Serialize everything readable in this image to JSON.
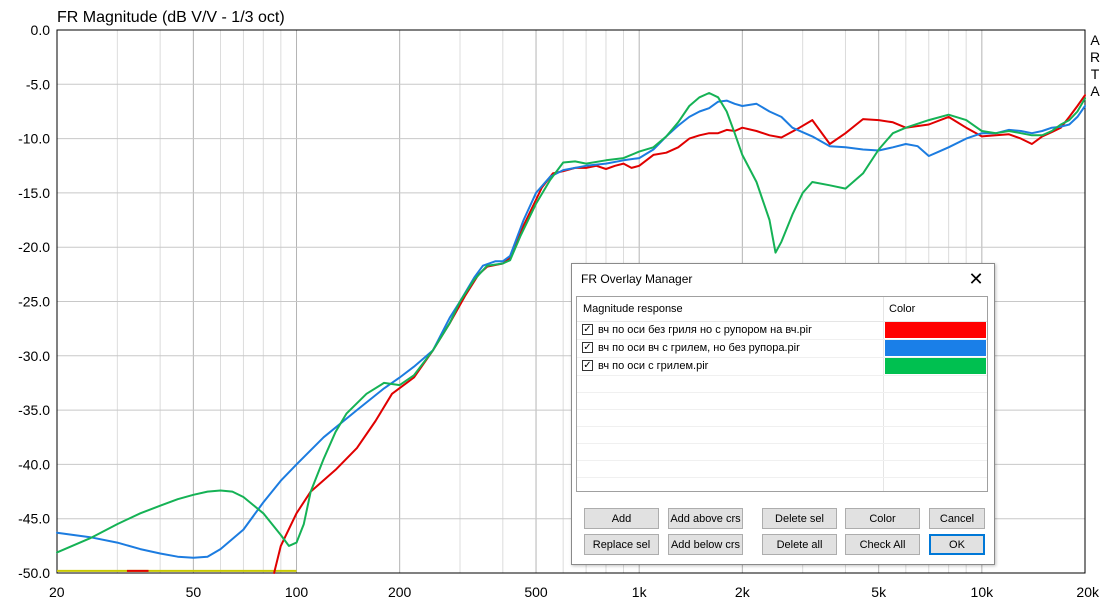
{
  "chart_data": {
    "type": "line",
    "title": "FR Magnitude (dB V/V - 1/3 oct)",
    "brand": [
      "A",
      "R",
      "T",
      "A"
    ],
    "x_scale": "log",
    "xlim": [
      20,
      20000
    ],
    "ylim": [
      -50,
      0
    ],
    "grid": true,
    "x_ticks": [
      {
        "value": 20,
        "label": "20"
      },
      {
        "value": 50,
        "label": "50"
      },
      {
        "value": 100,
        "label": "100"
      },
      {
        "value": 200,
        "label": "200"
      },
      {
        "value": 500,
        "label": "500"
      },
      {
        "value": 1000,
        "label": "1k"
      },
      {
        "value": 2000,
        "label": "2k"
      },
      {
        "value": 5000,
        "label": "5k"
      },
      {
        "value": 10000,
        "label": "10k"
      },
      {
        "value": 20000,
        "label": "20k"
      }
    ],
    "y_ticks": [
      {
        "value": 0,
        "label": "0.0"
      },
      {
        "value": -5,
        "label": "-5.0"
      },
      {
        "value": -10,
        "label": "-10.0"
      },
      {
        "value": -15,
        "label": "-15.0"
      },
      {
        "value": -20,
        "label": "-20.0"
      },
      {
        "value": -25,
        "label": "-25.0"
      },
      {
        "value": -30,
        "label": "-30.0"
      },
      {
        "value": -35,
        "label": "-35.0"
      },
      {
        "value": -40,
        "label": "-40.0"
      },
      {
        "value": -45,
        "label": "-45.0"
      },
      {
        "value": -50,
        "label": "-50.0"
      }
    ],
    "series": [
      {
        "name": "вч по оси без гриля но с рупором на вч.pir",
        "color": "#e00000",
        "points": [
          [
            86,
            -50
          ],
          [
            90,
            -47.5
          ],
          [
            100,
            -44.5
          ],
          [
            110,
            -42.5
          ],
          [
            130,
            -40.5
          ],
          [
            150,
            -38.5
          ],
          [
            170,
            -36
          ],
          [
            190,
            -33.5
          ],
          [
            220,
            -32
          ],
          [
            250,
            -29.5
          ],
          [
            280,
            -27
          ],
          [
            310,
            -24.5
          ],
          [
            340,
            -22.5
          ],
          [
            360,
            -21.8
          ],
          [
            400,
            -21.5
          ],
          [
            420,
            -21
          ],
          [
            460,
            -18
          ],
          [
            520,
            -14.5
          ],
          [
            560,
            -13.2
          ],
          [
            600,
            -13
          ],
          [
            650,
            -12.7
          ],
          [
            700,
            -12.7
          ],
          [
            750,
            -12.5
          ],
          [
            800,
            -12.8
          ],
          [
            850,
            -12.5
          ],
          [
            900,
            -12.3
          ],
          [
            950,
            -12.7
          ],
          [
            1000,
            -12.5
          ],
          [
            1100,
            -11.5
          ],
          [
            1200,
            -11.3
          ],
          [
            1300,
            -10.8
          ],
          [
            1400,
            -10
          ],
          [
            1500,
            -9.7
          ],
          [
            1600,
            -9.5
          ],
          [
            1700,
            -9.5
          ],
          [
            1800,
            -9.2
          ],
          [
            1900,
            -9.3
          ],
          [
            2000,
            -9
          ],
          [
            2200,
            -9.3
          ],
          [
            2400,
            -9.7
          ],
          [
            2600,
            -9.9
          ],
          [
            2900,
            -9.1
          ],
          [
            3200,
            -8.3
          ],
          [
            3600,
            -10.5
          ],
          [
            4000,
            -9.5
          ],
          [
            4500,
            -8.2
          ],
          [
            5000,
            -8.3
          ],
          [
            5500,
            -8.5
          ],
          [
            6000,
            -9
          ],
          [
            7000,
            -8.7
          ],
          [
            8000,
            -8
          ],
          [
            9000,
            -9
          ],
          [
            10000,
            -9.8
          ],
          [
            11000,
            -9.7
          ],
          [
            12000,
            -9.6
          ],
          [
            13000,
            -10
          ],
          [
            14000,
            -10.5
          ],
          [
            15000,
            -9.8
          ],
          [
            16000,
            -9.4
          ],
          [
            17000,
            -9
          ],
          [
            18000,
            -8
          ],
          [
            19000,
            -7
          ],
          [
            20000,
            -6
          ]
        ]
      },
      {
        "name": "вч по оси вч с грилем, но без рупора.pir",
        "color": "#1c7ce0",
        "points": [
          [
            20,
            -46.3
          ],
          [
            25,
            -46.7
          ],
          [
            30,
            -47.2
          ],
          [
            35,
            -47.8
          ],
          [
            40,
            -48.2
          ],
          [
            45,
            -48.5
          ],
          [
            50,
            -48.6
          ],
          [
            55,
            -48.5
          ],
          [
            60,
            -47.8
          ],
          [
            70,
            -46
          ],
          [
            80,
            -43.5
          ],
          [
            90,
            -41.5
          ],
          [
            100,
            -40
          ],
          [
            120,
            -37.5
          ],
          [
            150,
            -35
          ],
          [
            180,
            -33
          ],
          [
            200,
            -32
          ],
          [
            220,
            -31
          ],
          [
            250,
            -29.5
          ],
          [
            280,
            -26.5
          ],
          [
            300,
            -25
          ],
          [
            330,
            -22.8
          ],
          [
            350,
            -21.7
          ],
          [
            380,
            -21.3
          ],
          [
            400,
            -21.3
          ],
          [
            420,
            -20.8
          ],
          [
            460,
            -17.5
          ],
          [
            500,
            -15
          ],
          [
            550,
            -13.5
          ],
          [
            600,
            -12.9
          ],
          [
            700,
            -12.5
          ],
          [
            800,
            -12.3
          ],
          [
            900,
            -12
          ],
          [
            1000,
            -11.8
          ],
          [
            1100,
            -11
          ],
          [
            1200,
            -9.8
          ],
          [
            1300,
            -8.8
          ],
          [
            1400,
            -8
          ],
          [
            1500,
            -7.5
          ],
          [
            1600,
            -7.2
          ],
          [
            1700,
            -6.6
          ],
          [
            1800,
            -6.5
          ],
          [
            1900,
            -6.8
          ],
          [
            2000,
            -7
          ],
          [
            2200,
            -6.8
          ],
          [
            2400,
            -7.5
          ],
          [
            2600,
            -8
          ],
          [
            2800,
            -9
          ],
          [
            3200,
            -9.8
          ],
          [
            3600,
            -10.7
          ],
          [
            4000,
            -10.8
          ],
          [
            4500,
            -11
          ],
          [
            5000,
            -11.1
          ],
          [
            5500,
            -10.8
          ],
          [
            6000,
            -10.5
          ],
          [
            6500,
            -10.7
          ],
          [
            7000,
            -11.6
          ],
          [
            7500,
            -11.2
          ],
          [
            8000,
            -10.8
          ],
          [
            9000,
            -10
          ],
          [
            10000,
            -9.5
          ],
          [
            11000,
            -9.5
          ],
          [
            12000,
            -9.2
          ],
          [
            13000,
            -9.3
          ],
          [
            14000,
            -9.5
          ],
          [
            15000,
            -9.3
          ],
          [
            16000,
            -9
          ],
          [
            17000,
            -8.9
          ],
          [
            18000,
            -8.7
          ],
          [
            19000,
            -8
          ],
          [
            20000,
            -7
          ]
        ]
      },
      {
        "name": "вч по оси с грилем.pir",
        "color": "#15b255",
        "points": [
          [
            20,
            -48.1
          ],
          [
            25,
            -46.8
          ],
          [
            30,
            -45.5
          ],
          [
            35,
            -44.5
          ],
          [
            40,
            -43.8
          ],
          [
            45,
            -43.2
          ],
          [
            50,
            -42.8
          ],
          [
            55,
            -42.5
          ],
          [
            60,
            -42.4
          ],
          [
            65,
            -42.5
          ],
          [
            70,
            -43
          ],
          [
            80,
            -44.5
          ],
          [
            90,
            -46.5
          ],
          [
            95,
            -47.5
          ],
          [
            100,
            -47.2
          ],
          [
            105,
            -45.5
          ],
          [
            110,
            -42.5
          ],
          [
            120,
            -39.5
          ],
          [
            130,
            -37
          ],
          [
            140,
            -35.3
          ],
          [
            160,
            -33.5
          ],
          [
            180,
            -32.5
          ],
          [
            200,
            -32.7
          ],
          [
            220,
            -31.8
          ],
          [
            250,
            -29.5
          ],
          [
            280,
            -27
          ],
          [
            300,
            -25
          ],
          [
            330,
            -23
          ],
          [
            360,
            -21.7
          ],
          [
            400,
            -21.5
          ],
          [
            420,
            -21.2
          ],
          [
            450,
            -19
          ],
          [
            500,
            -16
          ],
          [
            550,
            -13.8
          ],
          [
            600,
            -12.2
          ],
          [
            650,
            -12.1
          ],
          [
            700,
            -12.3
          ],
          [
            800,
            -12
          ],
          [
            900,
            -11.8
          ],
          [
            1000,
            -11.2
          ],
          [
            1100,
            -10.8
          ],
          [
            1200,
            -9.8
          ],
          [
            1300,
            -8.5
          ],
          [
            1400,
            -7
          ],
          [
            1500,
            -6.2
          ],
          [
            1600,
            -5.8
          ],
          [
            1700,
            -6.2
          ],
          [
            1800,
            -7.5
          ],
          [
            1900,
            -9.5
          ],
          [
            2000,
            -11.5
          ],
          [
            2200,
            -14
          ],
          [
            2400,
            -17.5
          ],
          [
            2500,
            -20.5
          ],
          [
            2600,
            -19.5
          ],
          [
            2800,
            -17
          ],
          [
            3000,
            -15
          ],
          [
            3200,
            -14
          ],
          [
            3600,
            -14.3
          ],
          [
            4000,
            -14.6
          ],
          [
            4500,
            -13.2
          ],
          [
            5000,
            -11
          ],
          [
            5500,
            -9.5
          ],
          [
            6000,
            -9
          ],
          [
            7000,
            -8.3
          ],
          [
            8000,
            -7.8
          ],
          [
            9000,
            -8.3
          ],
          [
            10000,
            -9.3
          ],
          [
            11000,
            -9.5
          ],
          [
            12000,
            -9.3
          ],
          [
            13000,
            -9.5
          ],
          [
            14000,
            -9.7
          ],
          [
            15000,
            -9.7
          ],
          [
            16000,
            -9.3
          ],
          [
            17000,
            -8.7
          ],
          [
            18000,
            -8.3
          ],
          [
            19000,
            -7.5
          ],
          [
            20000,
            -6.3
          ]
        ]
      }
    ],
    "flat_markers": [
      {
        "color": "#c8c800",
        "x_range": [
          20,
          100
        ],
        "y": -49.8
      },
      {
        "color": "#e00000",
        "x_range": [
          32,
          37
        ],
        "y": -49.8
      }
    ]
  },
  "dialog": {
    "title": "FR Overlay Manager",
    "close_glyph": "✕",
    "col_name": "Magnitude response",
    "col_color": "Color",
    "check_glyph": "✓",
    "rows": [
      {
        "label": "вч по оси без гриля но с рупором на вч.pir",
        "color": "#ff0000",
        "checked": true
      },
      {
        "label": "вч по оси вч с грилем, но без рупора.pir",
        "color": "#1a7fe8",
        "checked": true
      },
      {
        "label": "вч по оси с грилем.pir",
        "color": "#00c050",
        "checked": true
      }
    ],
    "buttons": {
      "add": "Add",
      "add_above": "Add above crs",
      "delete_sel": "Delete sel",
      "color": "Color",
      "cancel": "Cancel",
      "replace_sel": "Replace sel",
      "add_below": "Add below crs",
      "delete_all": "Delete all",
      "check_all": "Check All",
      "ok": "OK"
    }
  }
}
